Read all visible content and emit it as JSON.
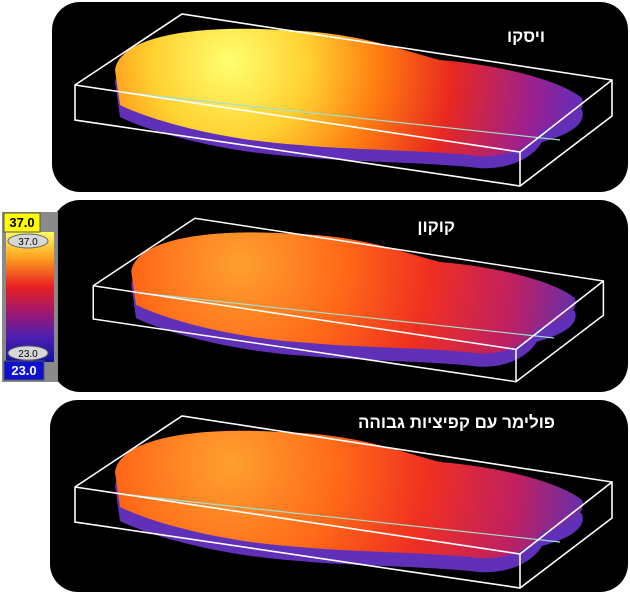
{
  "scale": {
    "max": "37.0",
    "max_marker": "37.0",
    "min_marker": "23.0",
    "min": "23.0"
  },
  "panels": [
    {
      "label": "ויסקו"
    },
    {
      "label": "קוקון"
    },
    {
      "label": "פולימר עם קפיציות גבוהה"
    }
  ]
}
